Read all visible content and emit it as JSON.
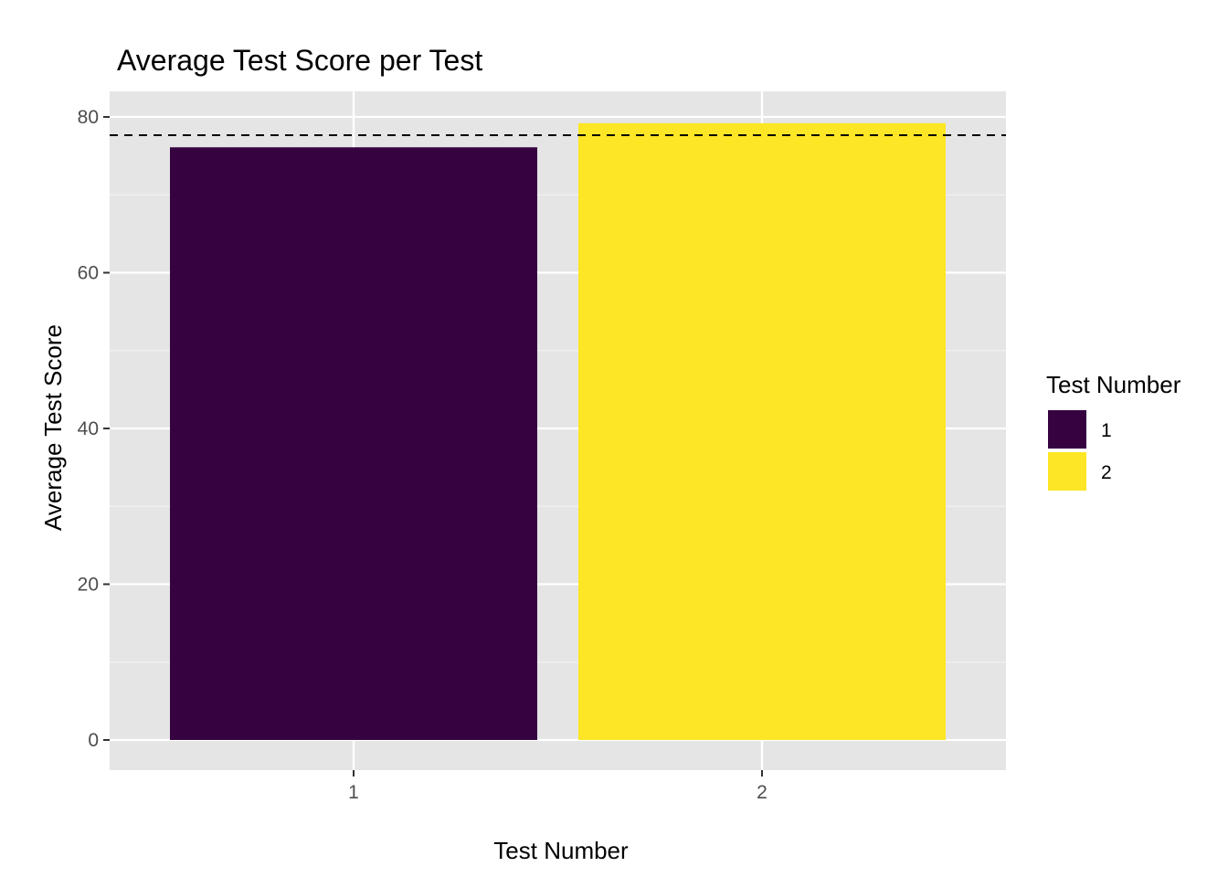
{
  "chart_data": {
    "type": "bar",
    "title": "Average Test Score per Test",
    "xlabel": "Test Number",
    "ylabel": "Average Test Score",
    "categories": [
      "1",
      "2"
    ],
    "values": [
      76.1,
      79.2
    ],
    "colors": [
      "#360340",
      "#FDE625"
    ],
    "reference_line": {
      "value": 77.65,
      "style": "dashed",
      "color": "#000000"
    },
    "ylim": [
      0,
      80
    ],
    "yticks": [
      0,
      20,
      40,
      60,
      80
    ],
    "grid": true,
    "panel_background": "#E5E5E5",
    "legend": {
      "title": "Test Number",
      "position": "right",
      "items": [
        {
          "label": "1",
          "color": "#360340"
        },
        {
          "label": "2",
          "color": "#FDE625"
        }
      ]
    }
  }
}
